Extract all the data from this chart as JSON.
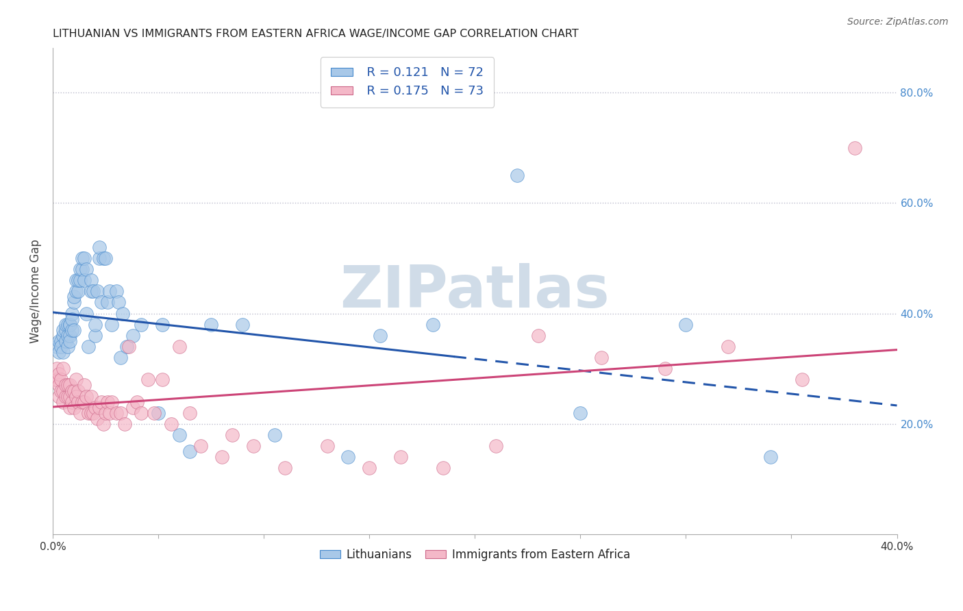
{
  "title": "LITHUANIAN VS IMMIGRANTS FROM EASTERN AFRICA WAGE/INCOME GAP CORRELATION CHART",
  "source": "Source: ZipAtlas.com",
  "ylabel": "Wage/Income Gap",
  "xlim": [
    0.0,
    0.4
  ],
  "ylim": [
    0.0,
    0.88
  ],
  "yticks": [
    0.2,
    0.4,
    0.6,
    0.8
  ],
  "ytick_labels": [
    "20.0%",
    "40.0%",
    "60.0%",
    "80.0%"
  ],
  "xticks": [
    0.0,
    0.05,
    0.1,
    0.15,
    0.2,
    0.25,
    0.3,
    0.35,
    0.4
  ],
  "xtick_labels_show": [
    "0.0%",
    "",
    "",
    "",
    "",
    "",
    "",
    "",
    "40.0%"
  ],
  "legend_R1": "R = 0.121",
  "legend_N1": "N = 72",
  "legend_R2": "R = 0.175",
  "legend_N2": "N = 73",
  "color_blue": "#a8c8e8",
  "color_pink": "#f4b8c8",
  "edge_blue": "#4488cc",
  "edge_pink": "#cc6688",
  "trendline_blue": "#2255aa",
  "trendline_pink": "#cc4477",
  "watermark_color": "#d0dce8",
  "blue_x": [
    0.002,
    0.003,
    0.003,
    0.004,
    0.004,
    0.005,
    0.005,
    0.005,
    0.006,
    0.006,
    0.006,
    0.007,
    0.007,
    0.007,
    0.008,
    0.008,
    0.008,
    0.008,
    0.009,
    0.009,
    0.009,
    0.01,
    0.01,
    0.01,
    0.011,
    0.011,
    0.012,
    0.012,
    0.013,
    0.013,
    0.014,
    0.014,
    0.015,
    0.015,
    0.016,
    0.016,
    0.017,
    0.018,
    0.018,
    0.019,
    0.02,
    0.02,
    0.021,
    0.022,
    0.022,
    0.023,
    0.024,
    0.025,
    0.026,
    0.027,
    0.028,
    0.03,
    0.031,
    0.032,
    0.033,
    0.035,
    0.038,
    0.042,
    0.05,
    0.052,
    0.06,
    0.065,
    0.075,
    0.09,
    0.105,
    0.14,
    0.155,
    0.18,
    0.22,
    0.25,
    0.3,
    0.34
  ],
  "blue_y": [
    0.34,
    0.35,
    0.33,
    0.35,
    0.34,
    0.36,
    0.37,
    0.33,
    0.35,
    0.37,
    0.38,
    0.36,
    0.38,
    0.34,
    0.38,
    0.36,
    0.35,
    0.38,
    0.4,
    0.37,
    0.39,
    0.42,
    0.43,
    0.37,
    0.44,
    0.46,
    0.44,
    0.46,
    0.46,
    0.48,
    0.48,
    0.5,
    0.46,
    0.5,
    0.48,
    0.4,
    0.34,
    0.44,
    0.46,
    0.44,
    0.36,
    0.38,
    0.44,
    0.5,
    0.52,
    0.42,
    0.5,
    0.5,
    0.42,
    0.44,
    0.38,
    0.44,
    0.42,
    0.32,
    0.4,
    0.34,
    0.36,
    0.38,
    0.22,
    0.38,
    0.18,
    0.15,
    0.38,
    0.38,
    0.18,
    0.14,
    0.36,
    0.38,
    0.65,
    0.22,
    0.38,
    0.14
  ],
  "pink_x": [
    0.001,
    0.002,
    0.002,
    0.003,
    0.003,
    0.003,
    0.004,
    0.004,
    0.005,
    0.005,
    0.005,
    0.006,
    0.006,
    0.007,
    0.007,
    0.008,
    0.008,
    0.008,
    0.009,
    0.009,
    0.01,
    0.01,
    0.011,
    0.011,
    0.012,
    0.012,
    0.013,
    0.014,
    0.015,
    0.015,
    0.016,
    0.017,
    0.018,
    0.018,
    0.019,
    0.02,
    0.021,
    0.022,
    0.023,
    0.024,
    0.025,
    0.026,
    0.027,
    0.028,
    0.03,
    0.032,
    0.034,
    0.036,
    0.038,
    0.04,
    0.042,
    0.045,
    0.048,
    0.052,
    0.056,
    0.06,
    0.065,
    0.07,
    0.08,
    0.085,
    0.095,
    0.11,
    0.13,
    0.15,
    0.165,
    0.185,
    0.21,
    0.23,
    0.26,
    0.29,
    0.32,
    0.355,
    0.38
  ],
  "pink_y": [
    0.28,
    0.28,
    0.3,
    0.25,
    0.27,
    0.29,
    0.26,
    0.28,
    0.24,
    0.26,
    0.3,
    0.25,
    0.27,
    0.25,
    0.27,
    0.23,
    0.25,
    0.27,
    0.24,
    0.26,
    0.23,
    0.26,
    0.25,
    0.28,
    0.24,
    0.26,
    0.22,
    0.24,
    0.24,
    0.27,
    0.25,
    0.22,
    0.22,
    0.25,
    0.22,
    0.23,
    0.21,
    0.23,
    0.24,
    0.2,
    0.22,
    0.24,
    0.22,
    0.24,
    0.22,
    0.22,
    0.2,
    0.34,
    0.23,
    0.24,
    0.22,
    0.28,
    0.22,
    0.28,
    0.2,
    0.34,
    0.22,
    0.16,
    0.14,
    0.18,
    0.16,
    0.12,
    0.16,
    0.12,
    0.14,
    0.12,
    0.16,
    0.36,
    0.32,
    0.3,
    0.34,
    0.28,
    0.7
  ]
}
